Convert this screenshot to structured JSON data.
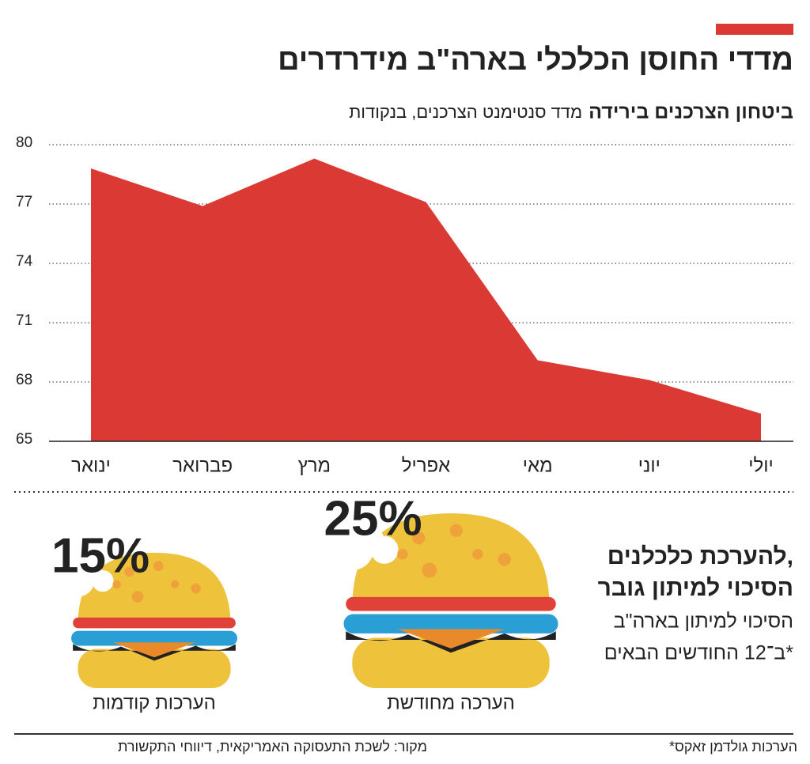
{
  "chart_data": [
    {
      "type": "area",
      "title": "מדדי החוסן הכלכלי בארה\"ב מידרדרים",
      "subtitle_bold": "ביטחון הצרכנים בירידה",
      "subtitle": "מדד סנטימנט הצרכנים, בנקודות",
      "categories": [
        "ינואר",
        "פברואר",
        "מרץ",
        "אפריל",
        "מאי",
        "יוני",
        "יולי"
      ],
      "values": [
        78.8,
        76.9,
        79.3,
        77.1,
        69.1,
        68.1,
        66.4
      ],
      "color": "#db3a34",
      "ylim": [
        65,
        80
      ],
      "yticks": [
        65,
        68,
        71,
        74,
        77,
        80
      ],
      "grid": true
    },
    {
      "type": "pictograph",
      "title_lines": [
        "להערכת כלכלנים,",
        "הסיכוי למיתון גובר"
      ],
      "subtitle_lines": [
        "הסיכוי למיתון בארה\"ב",
        "ב־12 החודשים הבאים*"
      ],
      "categories": [
        "הערכות קודמות",
        "הערכה מחודשת"
      ],
      "values": [
        15,
        25
      ],
      "value_labels": [
        "15%",
        "25%"
      ],
      "color": "#db3a34"
    }
  ],
  "footer": {
    "source": "מקור: לשכת התעסוקה האמריקאית, דיווחי התקשורת",
    "note": "*הערכות גולדמן זאקס"
  }
}
